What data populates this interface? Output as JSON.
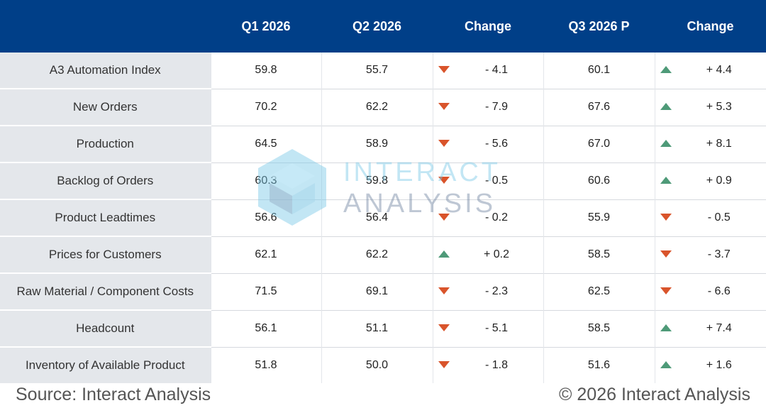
{
  "chart_data": {
    "type": "table",
    "columns": [
      "",
      "Q1 2026",
      "Q2 2026",
      "Change",
      "Q3 2026 P",
      "Change"
    ],
    "rows": [
      {
        "label": "A3 Automation Index",
        "q1": "59.8",
        "q2": "55.7",
        "chg1": "- 4.1",
        "dir1": "down",
        "q3": "60.1",
        "chg2": "+ 4.4",
        "dir2": "up"
      },
      {
        "label": "New Orders",
        "q1": "70.2",
        "q2": "62.2",
        "chg1": "- 7.9",
        "dir1": "down",
        "q3": "67.6",
        "chg2": "+ 5.3",
        "dir2": "up"
      },
      {
        "label": "Production",
        "q1": "64.5",
        "q2": "58.9",
        "chg1": "- 5.6",
        "dir1": "down",
        "q3": "67.0",
        "chg2": "+ 8.1",
        "dir2": "up"
      },
      {
        "label": "Backlog of Orders",
        "q1": "60.3",
        "q2": "59.8",
        "chg1": "- 0.5",
        "dir1": "down",
        "q3": "60.6",
        "chg2": "+ 0.9",
        "dir2": "up"
      },
      {
        "label": "Product Leadtimes",
        "q1": "56.6",
        "q2": "56.4",
        "chg1": "- 0.2",
        "dir1": "down",
        "q3": "55.9",
        "chg2": "- 0.5",
        "dir2": "down"
      },
      {
        "label": "Prices for Customers",
        "q1": "62.1",
        "q2": "62.2",
        "chg1": "+ 0.2",
        "dir1": "up",
        "q3": "58.5",
        "chg2": "- 3.7",
        "dir2": "down"
      },
      {
        "label": "Raw Material / Component Costs",
        "q1": "71.5",
        "q2": "69.1",
        "chg1": "- 2.3",
        "dir1": "down",
        "q3": "62.5",
        "chg2": "- 6.6",
        "dir2": "down"
      },
      {
        "label": "Headcount",
        "q1": "56.1",
        "q2": "51.1",
        "chg1": "- 5.1",
        "dir1": "down",
        "q3": "58.5",
        "chg2": "+ 7.4",
        "dir2": "up"
      },
      {
        "label": "Inventory of Available Product",
        "q1": "51.8",
        "q2": "50.0",
        "chg1": "- 1.8",
        "dir1": "down",
        "q3": "51.6",
        "chg2": "+ 1.6",
        "dir2": "up"
      }
    ]
  },
  "colors": {
    "header_bg": "#003f88",
    "label_bg": "#e4e7eb",
    "down_arrow": "#d9542b",
    "up_arrow": "#4e9a78"
  },
  "watermark": {
    "line1": "INTERACT",
    "line2": "ANALYSIS"
  },
  "footer": {
    "source": "Source: Interact Analysis",
    "copyright": "© 2026 Interact Analysis"
  }
}
